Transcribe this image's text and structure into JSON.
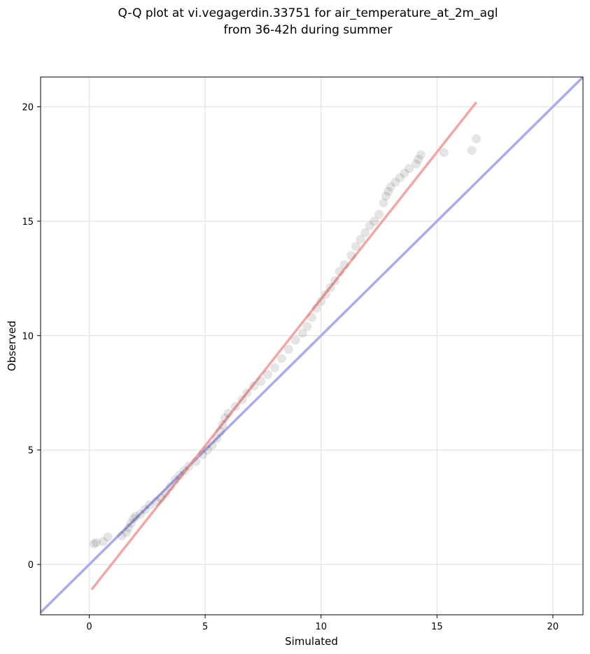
{
  "chart_data": {
    "type": "scatter",
    "title_line1": "Q-Q plot at vi.vegagerdin.33751 for air_temperature_at_2m_agl",
    "title_line2": "from 36-42h during summer",
    "xlabel": "Simulated",
    "ylabel": "Observed",
    "xlim": [
      -2.1,
      21.3
    ],
    "ylim": [
      -2.2,
      21.3
    ],
    "xticks": [
      0,
      5,
      10,
      15,
      20
    ],
    "yticks": [
      0,
      5,
      10,
      15,
      20
    ],
    "grid": true,
    "colors": {
      "points": "#000000",
      "identity_line": "#aaaaee",
      "fit_line": "#f4a6a6",
      "grid": "#e8e8e8"
    },
    "identity_line": {
      "x": [
        -2.1,
        21.3
      ],
      "y": [
        -2.1,
        21.3
      ]
    },
    "fit_line": {
      "x": [
        0.1,
        16.7
      ],
      "y": [
        -1.1,
        20.2
      ]
    },
    "points": [
      [
        0.2,
        0.9
      ],
      [
        0.3,
        0.95
      ],
      [
        0.6,
        1.0
      ],
      [
        0.8,
        1.2
      ],
      [
        1.4,
        1.25
      ],
      [
        1.6,
        1.4
      ],
      [
        1.7,
        1.6
      ],
      [
        1.8,
        1.8
      ],
      [
        1.9,
        2.0
      ],
      [
        2.0,
        2.1
      ],
      [
        2.2,
        2.2
      ],
      [
        2.4,
        2.4
      ],
      [
        2.6,
        2.6
      ],
      [
        2.9,
        2.75
      ],
      [
        3.1,
        2.9
      ],
      [
        3.3,
        3.1
      ],
      [
        3.5,
        3.4
      ],
      [
        3.7,
        3.7
      ],
      [
        3.9,
        3.9
      ],
      [
        4.1,
        4.1
      ],
      [
        4.3,
        4.3
      ],
      [
        4.6,
        4.5
      ],
      [
        4.9,
        4.8
      ],
      [
        5.1,
        5.0
      ],
      [
        5.3,
        5.2
      ],
      [
        5.5,
        5.5
      ],
      [
        5.65,
        5.8
      ],
      [
        5.75,
        6.1
      ],
      [
        5.85,
        6.4
      ],
      [
        6.0,
        6.6
      ],
      [
        6.3,
        6.9
      ],
      [
        6.6,
        7.2
      ],
      [
        6.8,
        7.5
      ],
      [
        7.1,
        7.8
      ],
      [
        7.4,
        8.0
      ],
      [
        7.7,
        8.3
      ],
      [
        8.0,
        8.6
      ],
      [
        8.3,
        9.0
      ],
      [
        8.6,
        9.4
      ],
      [
        8.9,
        9.8
      ],
      [
        9.2,
        10.1
      ],
      [
        9.4,
        10.4
      ],
      [
        9.6,
        10.8
      ],
      [
        9.8,
        11.2
      ],
      [
        10.0,
        11.5
      ],
      [
        10.2,
        11.8
      ],
      [
        10.4,
        12.1
      ],
      [
        10.6,
        12.4
      ],
      [
        10.8,
        12.8
      ],
      [
        11.0,
        13.1
      ],
      [
        11.3,
        13.5
      ],
      [
        11.5,
        13.9
      ],
      [
        11.7,
        14.2
      ],
      [
        11.9,
        14.5
      ],
      [
        12.1,
        14.8
      ],
      [
        12.3,
        15.0
      ],
      [
        12.5,
        15.3
      ],
      [
        12.7,
        15.8
      ],
      [
        12.8,
        16.1
      ],
      [
        12.9,
        16.3
      ],
      [
        13.0,
        16.5
      ],
      [
        13.2,
        16.7
      ],
      [
        13.4,
        16.9
      ],
      [
        13.6,
        17.1
      ],
      [
        13.8,
        17.3
      ],
      [
        14.1,
        17.5
      ],
      [
        14.2,
        17.7
      ],
      [
        14.3,
        17.9
      ],
      [
        15.3,
        18.0
      ],
      [
        16.5,
        18.1
      ],
      [
        16.7,
        18.6
      ]
    ]
  }
}
